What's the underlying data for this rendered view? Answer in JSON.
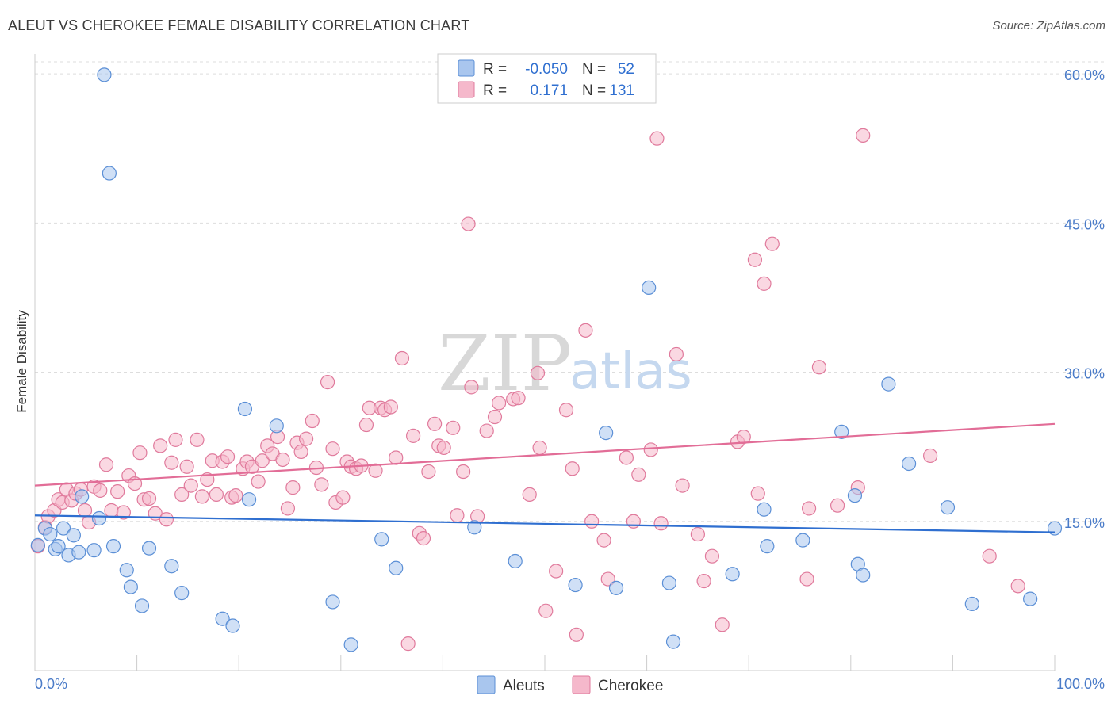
{
  "title": "ALEUT VS CHEROKEE FEMALE DISABILITY CORRELATION CHART",
  "source": "Source: ZipAtlas.com",
  "watermark": {
    "zip": "ZIP",
    "atlas": "atlas"
  },
  "colors": {
    "aleut_fill": "#a9c6ee",
    "aleut_stroke": "#5b8fd6",
    "aleut_line": "#2f6fd0",
    "cherokee_fill": "#f5b8cb",
    "cherokee_stroke": "#e07a9c",
    "cherokee_line": "#e26d97",
    "grid": "#dddddd",
    "axis_text": "#4a7bc8"
  },
  "legend": {
    "rows": [
      {
        "r_label": "R =",
        "r_value": "-0.050",
        "n_label": "N =",
        "n_value": "52"
      },
      {
        "r_label": "R =",
        "r_value": "0.171",
        "n_label": "N =",
        "n_value": "131"
      }
    ]
  },
  "chart_data": {
    "type": "scatter",
    "title": "ALEUT VS CHEROKEE FEMALE DISABILITY CORRELATION CHART",
    "xlabel": "",
    "ylabel": "Female Disability",
    "xlim": [
      0,
      100
    ],
    "ylim": [
      0,
      62
    ],
    "x_tick_labels": [
      "0.0%",
      "100.0%"
    ],
    "y_ticks": [
      15,
      30,
      45,
      60
    ],
    "y_tick_labels": [
      "15.0%",
      "30.0%",
      "45.0%",
      "60.0%"
    ],
    "grid": true,
    "legend_position": "bottom-center",
    "series": [
      {
        "name": "Aleuts",
        "r": -0.05,
        "n": 52,
        "trend": [
          [
            0,
            15.6
          ],
          [
            100,
            13.9
          ]
        ],
        "points": [
          [
            0.3,
            12.6
          ],
          [
            1.0,
            14.3
          ],
          [
            1.5,
            13.7
          ],
          [
            2.0,
            12.2
          ],
          [
            2.3,
            12.5
          ],
          [
            2.8,
            14.3
          ],
          [
            3.3,
            11.6
          ],
          [
            3.8,
            13.6
          ],
          [
            4.3,
            11.9
          ],
          [
            4.6,
            17.5
          ],
          [
            5.8,
            12.1
          ],
          [
            6.3,
            15.3
          ],
          [
            6.8,
            59.9
          ],
          [
            7.3,
            50.0
          ],
          [
            7.7,
            12.5
          ],
          [
            9.0,
            10.1
          ],
          [
            9.4,
            8.4
          ],
          [
            10.5,
            6.5
          ],
          [
            11.2,
            12.3
          ],
          [
            13.4,
            10.5
          ],
          [
            14.4,
            7.8
          ],
          [
            18.4,
            5.2
          ],
          [
            19.4,
            4.5
          ],
          [
            20.6,
            26.3
          ],
          [
            21.0,
            17.2
          ],
          [
            23.7,
            24.6
          ],
          [
            29.2,
            6.9
          ],
          [
            31.0,
            2.6
          ],
          [
            34.0,
            13.2
          ],
          [
            35.4,
            10.3
          ],
          [
            43.1,
            14.4
          ],
          [
            47.1,
            11.0
          ],
          [
            53.0,
            8.6
          ],
          [
            56.0,
            23.9
          ],
          [
            57.0,
            8.3
          ],
          [
            60.2,
            38.5
          ],
          [
            62.2,
            8.8
          ],
          [
            62.6,
            2.9
          ],
          [
            68.4,
            9.7
          ],
          [
            71.5,
            16.2
          ],
          [
            71.8,
            12.5
          ],
          [
            75.3,
            13.1
          ],
          [
            79.1,
            24.0
          ],
          [
            80.4,
            17.6
          ],
          [
            80.7,
            10.7
          ],
          [
            81.2,
            9.6
          ],
          [
            83.7,
            28.8
          ],
          [
            85.7,
            20.8
          ],
          [
            89.5,
            16.4
          ],
          [
            91.9,
            6.7
          ],
          [
            97.6,
            7.2
          ],
          [
            100.0,
            14.3
          ]
        ]
      },
      {
        "name": "Cherokee",
        "r": 0.171,
        "n": 131,
        "trend": [
          [
            0,
            18.6
          ],
          [
            100,
            24.8
          ]
        ],
        "points": [
          [
            0.3,
            12.5
          ],
          [
            1.0,
            14.4
          ],
          [
            1.3,
            15.5
          ],
          [
            1.9,
            16.1
          ],
          [
            2.3,
            17.2
          ],
          [
            2.7,
            16.9
          ],
          [
            3.1,
            18.2
          ],
          [
            3.6,
            17.1
          ],
          [
            4.0,
            17.8
          ],
          [
            4.5,
            18.2
          ],
          [
            4.9,
            16.1
          ],
          [
            5.3,
            14.9
          ],
          [
            5.8,
            18.5
          ],
          [
            6.4,
            18.1
          ],
          [
            7.0,
            20.7
          ],
          [
            7.5,
            16.1
          ],
          [
            8.1,
            18.0
          ],
          [
            8.7,
            15.9
          ],
          [
            9.2,
            19.6
          ],
          [
            9.8,
            18.8
          ],
          [
            10.3,
            21.9
          ],
          [
            10.7,
            17.2
          ],
          [
            11.2,
            17.3
          ],
          [
            11.8,
            15.8
          ],
          [
            12.3,
            22.6
          ],
          [
            12.9,
            15.2
          ],
          [
            13.4,
            20.9
          ],
          [
            13.8,
            23.2
          ],
          [
            14.4,
            17.7
          ],
          [
            14.9,
            20.5
          ],
          [
            15.3,
            18.6
          ],
          [
            15.9,
            23.2
          ],
          [
            16.4,
            17.5
          ],
          [
            16.9,
            19.2
          ],
          [
            17.4,
            21.1
          ],
          [
            17.8,
            17.7
          ],
          [
            18.4,
            21.0
          ],
          [
            18.9,
            21.5
          ],
          [
            19.3,
            17.4
          ],
          [
            19.7,
            17.6
          ],
          [
            20.4,
            20.3
          ],
          [
            20.8,
            21.0
          ],
          [
            21.3,
            20.5
          ],
          [
            21.9,
            19.0
          ],
          [
            22.3,
            21.1
          ],
          [
            22.8,
            22.6
          ],
          [
            23.3,
            21.8
          ],
          [
            23.8,
            23.5
          ],
          [
            24.3,
            21.2
          ],
          [
            24.8,
            16.3
          ],
          [
            25.3,
            18.4
          ],
          [
            25.7,
            22.9
          ],
          [
            26.1,
            22.0
          ],
          [
            26.6,
            23.3
          ],
          [
            27.2,
            25.1
          ],
          [
            27.6,
            20.4
          ],
          [
            28.1,
            18.7
          ],
          [
            28.7,
            29.0
          ],
          [
            29.2,
            22.3
          ],
          [
            29.5,
            16.9
          ],
          [
            30.2,
            17.4
          ],
          [
            30.6,
            21.0
          ],
          [
            31.0,
            20.5
          ],
          [
            31.5,
            20.3
          ],
          [
            32.0,
            20.6
          ],
          [
            32.5,
            24.7
          ],
          [
            32.8,
            26.4
          ],
          [
            33.4,
            20.1
          ],
          [
            33.9,
            26.4
          ],
          [
            34.3,
            26.2
          ],
          [
            34.9,
            26.5
          ],
          [
            35.4,
            21.4
          ],
          [
            36.0,
            31.4
          ],
          [
            36.6,
            2.7
          ],
          [
            37.1,
            23.6
          ],
          [
            37.7,
            13.8
          ],
          [
            38.1,
            13.3
          ],
          [
            38.6,
            20.0
          ],
          [
            39.2,
            24.8
          ],
          [
            39.6,
            22.6
          ],
          [
            40.1,
            22.4
          ],
          [
            41.0,
            24.4
          ],
          [
            41.4,
            15.6
          ],
          [
            42.0,
            20.0
          ],
          [
            42.5,
            44.9
          ],
          [
            42.8,
            28.5
          ],
          [
            43.4,
            15.5
          ],
          [
            44.3,
            24.1
          ],
          [
            45.1,
            25.5
          ],
          [
            45.5,
            26.9
          ],
          [
            46.9,
            27.3
          ],
          [
            47.4,
            27.4
          ],
          [
            48.5,
            17.7
          ],
          [
            49.3,
            29.9
          ],
          [
            49.5,
            22.4
          ],
          [
            50.1,
            6.0
          ],
          [
            51.1,
            10.0
          ],
          [
            52.1,
            26.2
          ],
          [
            52.7,
            20.3
          ],
          [
            53.1,
            3.6
          ],
          [
            54.0,
            34.2
          ],
          [
            54.6,
            15.0
          ],
          [
            55.8,
            13.1
          ],
          [
            56.2,
            9.2
          ],
          [
            58.0,
            21.4
          ],
          [
            58.7,
            15.0
          ],
          [
            59.2,
            19.7
          ],
          [
            60.4,
            22.2
          ],
          [
            61.0,
            53.5
          ],
          [
            61.4,
            14.8
          ],
          [
            62.9,
            31.8
          ],
          [
            63.5,
            18.6
          ],
          [
            65.0,
            13.7
          ],
          [
            65.6,
            9.0
          ],
          [
            66.4,
            11.5
          ],
          [
            67.4,
            4.6
          ],
          [
            68.9,
            23.0
          ],
          [
            69.5,
            23.5
          ],
          [
            70.6,
            41.3
          ],
          [
            70.9,
            17.8
          ],
          [
            71.5,
            38.9
          ],
          [
            72.3,
            42.9
          ],
          [
            75.7,
            9.2
          ],
          [
            75.9,
            16.3
          ],
          [
            76.9,
            30.5
          ],
          [
            78.7,
            16.6
          ],
          [
            80.7,
            18.4
          ],
          [
            81.2,
            53.8
          ],
          [
            87.8,
            21.6
          ],
          [
            93.6,
            11.5
          ],
          [
            96.4,
            8.5
          ]
        ]
      }
    ]
  }
}
